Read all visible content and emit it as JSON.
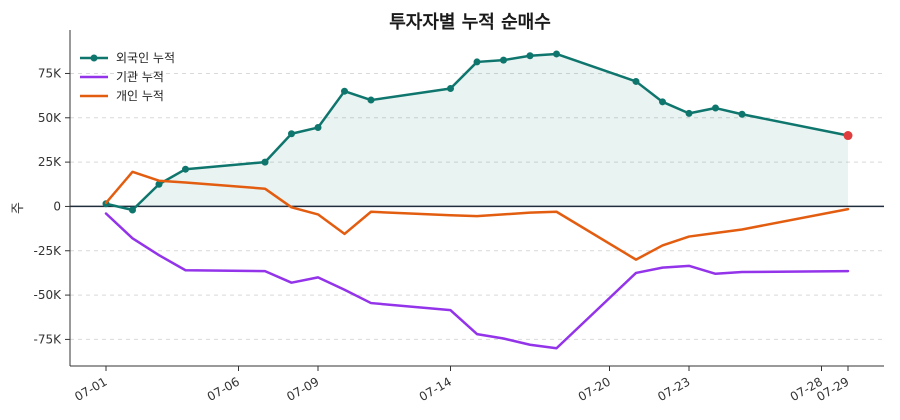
{
  "chart_data": {
    "type": "line",
    "title": "투자자별 누적 순매수",
    "xlabel": "",
    "ylabel": "주",
    "x": [
      "07-01",
      "07-02",
      "07-03",
      "07-04",
      "07-05",
      "07-06",
      "07-07",
      "07-08",
      "07-09",
      "07-10",
      "07-11",
      "07-12",
      "07-13",
      "07-14",
      "07-15",
      "07-16",
      "07-17",
      "07-18",
      "07-19",
      "07-20",
      "07-21",
      "07-22",
      "07-23",
      "07-24",
      "07-25",
      "07-26",
      "07-27",
      "07-28",
      "07-29"
    ],
    "x_ticks": [
      "07-01",
      "07-06",
      "07-09",
      "07-14",
      "07-20",
      "07-23",
      "07-28",
      "07-29"
    ],
    "ylim": [
      -90000,
      95000
    ],
    "y_ticks": [
      -75000,
      -50000,
      -25000,
      0,
      25000,
      50000,
      75000
    ],
    "y_tick_labels": [
      "-75K",
      "-50K",
      "-25K",
      "0",
      "25K",
      "50K",
      "75K"
    ],
    "grid": "horizontal",
    "legend_position": "top-left",
    "series": [
      {
        "name": "외국인 누적",
        "color": "#0f766e",
        "markers": true,
        "fill": true,
        "points": [
          [
            "07-01",
            1500
          ],
          [
            "07-02",
            -2000
          ],
          [
            "07-03",
            12500
          ],
          [
            "07-04",
            21000
          ],
          [
            "07-07",
            25000
          ],
          [
            "07-08",
            41000
          ],
          [
            "07-09",
            44500
          ],
          [
            "07-10",
            65000
          ],
          [
            "07-11",
            60000
          ],
          [
            "07-14",
            66500
          ],
          [
            "07-15",
            81500
          ],
          [
            "07-16",
            82500
          ],
          [
            "07-17",
            85000
          ],
          [
            "07-18",
            86000
          ],
          [
            "07-21",
            70500
          ],
          [
            "07-22",
            59000
          ],
          [
            "07-23",
            52500
          ],
          [
            "07-24",
            55500
          ],
          [
            "07-25",
            52000
          ],
          [
            "07-29",
            40000
          ]
        ],
        "last_point_color": "#e03e3e"
      },
      {
        "name": "기관 누적",
        "color": "#9333ea",
        "markers": false,
        "fill": false,
        "points": [
          [
            "07-01",
            -4000
          ],
          [
            "07-02",
            -18000
          ],
          [
            "07-03",
            -27500
          ],
          [
            "07-04",
            -36000
          ],
          [
            "07-07",
            -36500
          ],
          [
            "07-08",
            -43000
          ],
          [
            "07-09",
            -40000
          ],
          [
            "07-10",
            -47000
          ],
          [
            "07-11",
            -54500
          ],
          [
            "07-14",
            -58500
          ],
          [
            "07-15",
            -72000
          ],
          [
            "07-16",
            -74500
          ],
          [
            "07-17",
            -78000
          ],
          [
            "07-18",
            -80000
          ],
          [
            "07-21",
            -37500
          ],
          [
            "07-22",
            -34500
          ],
          [
            "07-23",
            -33500
          ],
          [
            "07-24",
            -38000
          ],
          [
            "07-25",
            -37000
          ],
          [
            "07-29",
            -36500
          ]
        ]
      },
      {
        "name": "개인 누적",
        "color": "#e35d10",
        "markers": false,
        "fill": false,
        "points": [
          [
            "07-01",
            2000
          ],
          [
            "07-02",
            19500
          ],
          [
            "07-03",
            14500
          ],
          [
            "07-04",
            13500
          ],
          [
            "07-07",
            10000
          ],
          [
            "07-08",
            -500
          ],
          [
            "07-09",
            -4500
          ],
          [
            "07-10",
            -15500
          ],
          [
            "07-11",
            -3000
          ],
          [
            "07-14",
            -5000
          ],
          [
            "07-15",
            -5500
          ],
          [
            "07-16",
            -4500
          ],
          [
            "07-17",
            -3500
          ],
          [
            "07-18",
            -3000
          ],
          [
            "07-21",
            -30000
          ],
          [
            "07-22",
            -22000
          ],
          [
            "07-23",
            -17000
          ],
          [
            "07-24",
            -15000
          ],
          [
            "07-25",
            -13000
          ],
          [
            "07-29",
            -1500
          ]
        ]
      }
    ]
  }
}
